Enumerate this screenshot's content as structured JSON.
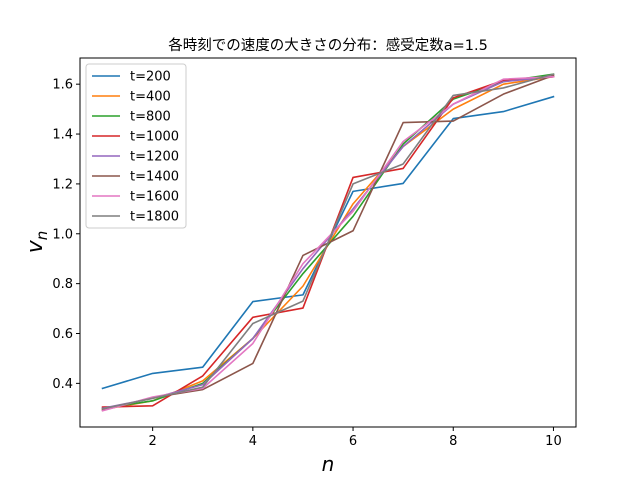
{
  "chart_data": {
    "type": "line",
    "title": "各時刻での速度の大きさの分布：感受定数a=1.5",
    "xlabel": "n",
    "ylabel_main": "v",
    "ylabel_sub": "n",
    "x": [
      1,
      2,
      3,
      4,
      5,
      6,
      7,
      8,
      9,
      10
    ],
    "xlim": [
      0.55,
      10.45
    ],
    "ylim": [
      0.225,
      1.705
    ],
    "xticks": [
      2,
      4,
      6,
      8,
      10
    ],
    "yticks": [
      0.4,
      0.6,
      0.8,
      1.0,
      1.2,
      1.4,
      1.6
    ],
    "ytick_labels": [
      "0.4",
      "0.6",
      "0.8",
      "1.0",
      "1.2",
      "1.4",
      "1.6"
    ],
    "grid": false,
    "legend_position": "upper-left",
    "series": [
      {
        "name": "t=200",
        "color": "#1f77b4",
        "values": [
          0.38,
          0.44,
          0.465,
          0.728,
          0.755,
          1.17,
          1.202,
          1.462,
          1.49,
          1.55
        ]
      },
      {
        "name": "t=400",
        "color": "#ff7f0e",
        "values": [
          0.295,
          0.33,
          0.41,
          0.58,
          0.79,
          1.12,
          1.35,
          1.5,
          1.6,
          1.63
        ]
      },
      {
        "name": "t=800",
        "color": "#2ca02c",
        "values": [
          0.3,
          0.33,
          0.4,
          0.58,
          0.84,
          1.07,
          1.36,
          1.54,
          1.61,
          1.64
        ]
      },
      {
        "name": "t=1000",
        "color": "#d62728",
        "values": [
          0.305,
          0.31,
          0.43,
          0.665,
          0.702,
          1.226,
          1.262,
          1.545,
          1.615,
          1.63
        ]
      },
      {
        "name": "t=1200",
        "color": "#9467bd",
        "values": [
          0.3,
          0.34,
          0.395,
          0.58,
          0.86,
          1.1,
          1.35,
          1.52,
          1.61,
          1.63
        ]
      },
      {
        "name": "t=1400",
        "color": "#8c564b",
        "values": [
          0.292,
          0.343,
          0.375,
          0.48,
          0.913,
          1.012,
          1.446,
          1.452,
          1.56,
          1.635
        ]
      },
      {
        "name": "t=1600",
        "color": "#e377c2",
        "values": [
          0.29,
          0.345,
          0.38,
          0.56,
          0.88,
          1.09,
          1.37,
          1.52,
          1.62,
          1.63
        ]
      },
      {
        "name": "t=1800",
        "color": "#7f7f7f",
        "values": [
          0.298,
          0.34,
          0.385,
          0.64,
          0.73,
          1.2,
          1.28,
          1.555,
          1.585,
          1.64
        ]
      }
    ]
  }
}
